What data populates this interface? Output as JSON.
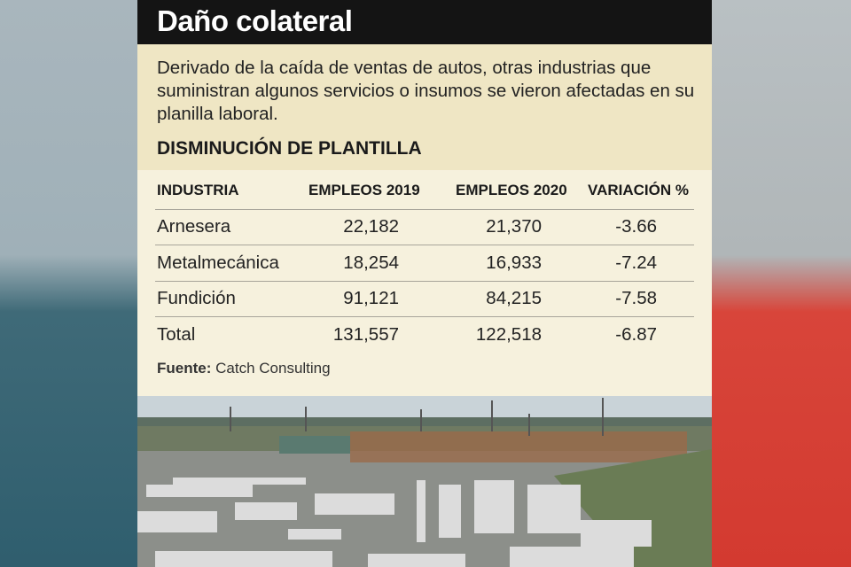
{
  "header": {
    "title": "Daño colateral"
  },
  "intro": {
    "text": "Derivado de la caída de ventas de autos, otras industrias que suministran algunos servicios o insumos se vieron afectadas en su planilla laboral."
  },
  "section": {
    "title": "DISMINUCIÓN DE PLANTILLA"
  },
  "table": {
    "columns": [
      "INDUSTRIA",
      "EMPLEOS 2019",
      "EMPLEOS 2020",
      "VARIACIÓN %"
    ],
    "rows": [
      [
        "Arnesera",
        "22,182",
        "21,370",
        "-3.66"
      ],
      [
        "Metalmecánica",
        "18,254",
        "16,933",
        "-7.24"
      ],
      [
        "Fundición",
        "91,121",
        "84,215",
        "-7.58"
      ],
      [
        "Total",
        "131,557",
        "122,518",
        "-6.87"
      ]
    ]
  },
  "source": {
    "label": "Fuente:",
    "text": "Catch Consulting"
  }
}
